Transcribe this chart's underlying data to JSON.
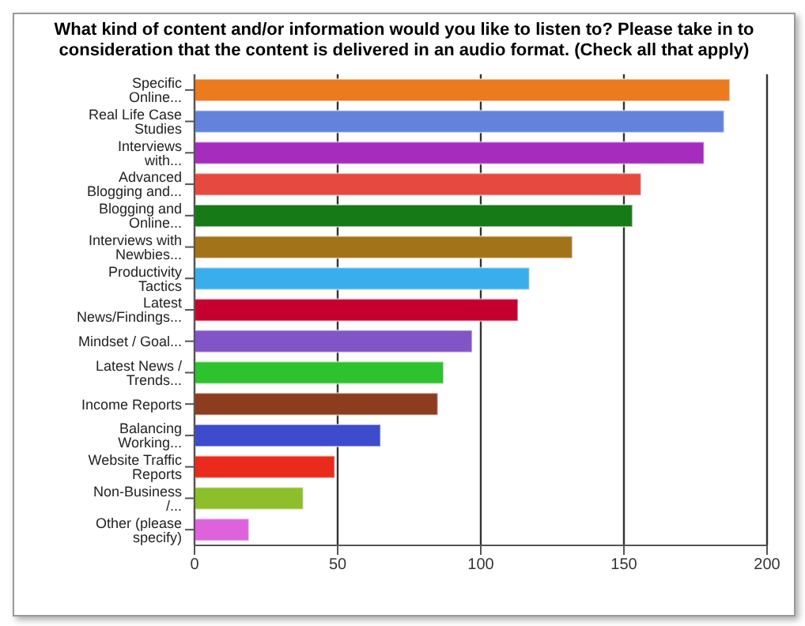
{
  "chart_data": {
    "type": "bar",
    "orientation": "horizontal",
    "title": "What kind of content and/or information would you like to listen to? Please take in to consideration that the content is delivered in an audio format. (Check all that apply)",
    "categories": [
      "Specific Online...",
      "Real Life Case Studies",
      "Interviews with...",
      "Advanced Blogging and...",
      "Blogging and Online...",
      "Interviews with Newbies...",
      "Productivity Tactics",
      "Latest News/Findings...",
      "Mindset / Goal...",
      "Latest News / Trends...",
      "Income Reports",
      "Balancing Working...",
      "Website Traffic Reports",
      "Non-Business /...",
      "Other (please specify)"
    ],
    "values": [
      187,
      185,
      178,
      156,
      153,
      132,
      117,
      113,
      97,
      87,
      85,
      65,
      49,
      38,
      19
    ],
    "colors": [
      "#ec7a1e",
      "#6482dc",
      "#a52cbd",
      "#e64a3e",
      "#167a16",
      "#a3731a",
      "#3aaeec",
      "#c5002f",
      "#8155c6",
      "#2ec22e",
      "#8e3c1e",
      "#3c4ccc",
      "#ea2a1a",
      "#8cbf2a",
      "#de62dc"
    ],
    "xlim": [
      0,
      200
    ],
    "xticks": [
      0,
      50,
      100,
      150,
      200
    ],
    "grid": "x"
  }
}
